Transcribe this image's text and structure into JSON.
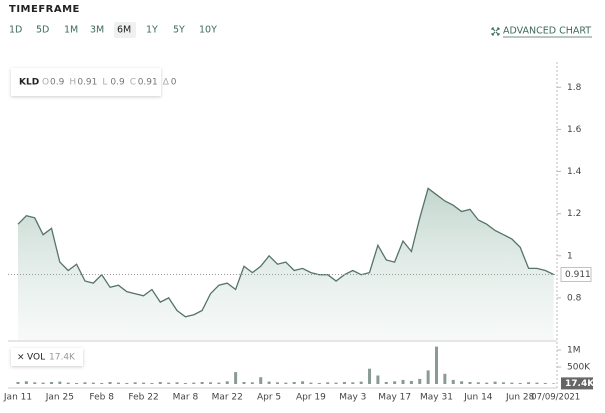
{
  "toolbar": {
    "title": "TIMEFRAME",
    "ranges": [
      "1D",
      "5D",
      "1M",
      "3M",
      "6M",
      "1Y",
      "5Y",
      "10Y"
    ],
    "selected_index": 4,
    "advanced": "ADVANCED CHART"
  },
  "legend_box": {
    "fields": [
      {
        "key": "O",
        "value": "0.9"
      },
      {
        "key": "H",
        "value": "0.91"
      },
      {
        "key": "L",
        "value": "0.9"
      },
      {
        "key": "C",
        "value": "0.91"
      },
      {
        "key": "Δ",
        "value": "0"
      }
    ]
  },
  "chart_data": {
    "type": "line",
    "categories": [
      "Jan 11",
      null,
      null,
      null,
      null,
      "Jan 25",
      null,
      null,
      null,
      null,
      "Feb 8",
      null,
      null,
      null,
      null,
      "Feb 22",
      null,
      null,
      null,
      null,
      "Mar 8",
      null,
      null,
      null,
      null,
      "Mar 22",
      null,
      null,
      null,
      null,
      "Apr 5",
      null,
      null,
      null,
      null,
      "Apr 19",
      null,
      null,
      null,
      null,
      "May 3",
      null,
      null,
      null,
      null,
      "May 17",
      null,
      null,
      null,
      null,
      "May 31",
      null,
      null,
      null,
      null,
      "Jun 14",
      null,
      null,
      null,
      null,
      "Jun 28",
      null,
      null,
      null,
      "07/09/2021"
    ],
    "series": [
      {
        "name": "KLD",
        "color": "#55736a",
        "values": [
          1.15,
          1.19,
          1.18,
          1.1,
          1.13,
          0.97,
          0.93,
          0.96,
          0.88,
          0.87,
          0.91,
          0.85,
          0.86,
          0.83,
          0.82,
          0.81,
          0.84,
          0.78,
          0.8,
          0.74,
          0.71,
          0.72,
          0.74,
          0.82,
          0.86,
          0.87,
          0.84,
          0.95,
          0.92,
          0.95,
          1.0,
          0.96,
          0.97,
          0.93,
          0.94,
          0.92,
          0.91,
          0.91,
          0.88,
          0.91,
          0.93,
          0.91,
          0.92,
          1.05,
          0.98,
          0.97,
          1.07,
          1.02,
          1.18,
          1.32,
          1.29,
          1.26,
          1.24,
          1.21,
          1.22,
          1.17,
          1.15,
          1.12,
          1.1,
          1.08,
          1.04,
          0.94,
          0.94,
          0.93,
          0.911
        ]
      },
      {
        "name": "VOL",
        "color": "#8a9a94",
        "axis": "y2",
        "values": [
          60000,
          80000,
          50000,
          40000,
          60000,
          70000,
          40000,
          30000,
          50000,
          40000,
          30000,
          60000,
          40000,
          30000,
          50000,
          40000,
          30000,
          60000,
          40000,
          50000,
          30000,
          40000,
          60000,
          50000,
          40000,
          80000,
          350000,
          60000,
          50000,
          200000,
          70000,
          50000,
          40000,
          60000,
          80000,
          40000,
          30000,
          50000,
          40000,
          60000,
          50000,
          70000,
          450000,
          250000,
          60000,
          80000,
          120000,
          90000,
          150000,
          400000,
          1100000,
          300000,
          120000,
          80000,
          60000,
          50000,
          40000,
          70000,
          50000,
          40000,
          30000,
          50000,
          40000,
          30000,
          17400
        ],
        "value_labels": [
          null,
          null,
          null,
          null,
          null,
          null,
          null,
          null,
          null,
          null,
          null,
          null,
          null,
          null,
          null,
          null,
          null,
          null,
          null,
          null,
          null,
          null,
          null,
          null,
          null,
          null,
          null,
          null,
          null,
          null,
          null,
          null,
          null,
          null,
          null,
          null,
          null,
          null,
          null,
          null,
          null,
          null,
          null,
          null,
          null,
          null,
          null,
          null,
          null,
          null,
          null,
          null,
          null,
          null,
          null,
          null,
          null,
          null,
          null,
          null,
          null,
          null,
          null,
          null,
          "17.4K"
        ]
      }
    ],
    "ylim": [
      0.6,
      1.92
    ],
    "yticks": [
      0.8,
      1,
      1.2,
      1.4,
      1.6,
      1.8
    ],
    "y2lim": [
      0,
      1235000
    ],
    "y2ticks": [
      {
        "value": 500000,
        "label": "500K"
      },
      {
        "value": 1000000,
        "label": "1M"
      }
    ]
  }
}
